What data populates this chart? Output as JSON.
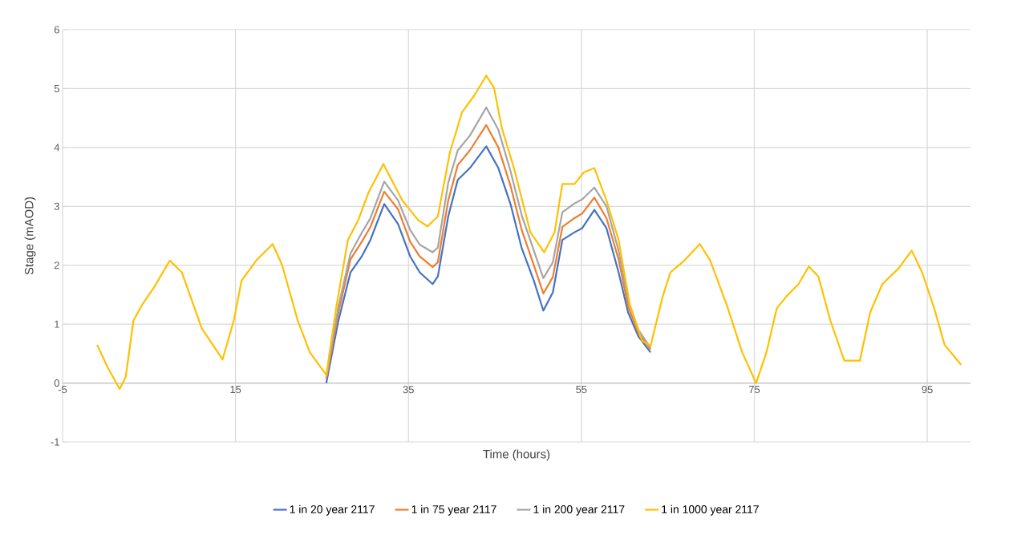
{
  "chart_data": {
    "type": "line",
    "xlabel": "Time (hours)",
    "ylabel": "Stage (mAOD)",
    "xlim": [
      -5,
      100
    ],
    "xticks": [
      -5,
      15,
      35,
      55,
      75,
      95
    ],
    "ylim": [
      -1,
      6
    ],
    "yticks": [
      -1,
      0,
      1,
      2,
      3,
      4,
      5,
      6
    ],
    "grid": true,
    "legend": "bottom",
    "marker": "none",
    "line_style": "solid",
    "series": [
      {
        "name": "1 in 20 year 2117",
        "color": "#4472c4",
        "x": [
          25.5,
          26.9,
          28.3,
          29.6,
          30.6,
          32.2,
          33.8,
          35.2,
          36.3,
          37.8,
          38.4,
          39.6,
          40.7,
          42.1,
          44.0,
          45.4,
          46.8,
          48.1,
          49.5,
          50.6,
          51.7,
          52.8,
          54.2,
          55.1,
          56.5,
          57.9,
          59.3,
          60.4,
          61.6,
          63.0
        ],
        "values": [
          0.0,
          1.06,
          1.88,
          2.15,
          2.43,
          3.04,
          2.7,
          2.15,
          1.88,
          1.68,
          1.81,
          2.83,
          3.45,
          3.65,
          4.02,
          3.65,
          3.04,
          2.29,
          1.74,
          1.23,
          1.54,
          2.43,
          2.56,
          2.63,
          2.94,
          2.63,
          1.88,
          1.2,
          0.79,
          0.52
        ]
      },
      {
        "name": "1 in 75 year 2117",
        "color": "#ed7d31",
        "x": [
          25.5,
          26.9,
          28.3,
          29.6,
          30.6,
          32.2,
          33.8,
          35.2,
          36.3,
          37.8,
          38.4,
          39.6,
          40.7,
          42.1,
          44.0,
          45.4,
          46.8,
          48.1,
          49.5,
          50.6,
          51.7,
          52.8,
          54.2,
          55.1,
          56.5,
          57.9,
          59.3,
          60.4,
          61.6,
          63.0
        ],
        "values": [
          0.07,
          1.2,
          2.1,
          2.4,
          2.65,
          3.25,
          2.95,
          2.4,
          2.15,
          1.97,
          2.05,
          3.1,
          3.7,
          3.95,
          4.38,
          4.0,
          3.35,
          2.6,
          2.0,
          1.52,
          1.8,
          2.65,
          2.8,
          2.88,
          3.15,
          2.8,
          2.1,
          1.3,
          0.85,
          0.57
        ]
      },
      {
        "name": "1 in 200 year 2117",
        "color": "#a5a5a5",
        "x": [
          25.5,
          26.9,
          28.3,
          29.6,
          30.6,
          32.2,
          33.8,
          35.2,
          36.3,
          37.8,
          38.4,
          39.6,
          40.7,
          42.1,
          44.0,
          45.4,
          46.8,
          48.1,
          49.5,
          50.6,
          51.7,
          52.8,
          54.2,
          55.1,
          56.5,
          57.9,
          59.3,
          60.4,
          61.6,
          63.0
        ],
        "values": [
          0.1,
          1.3,
          2.2,
          2.55,
          2.8,
          3.42,
          3.1,
          2.6,
          2.35,
          2.22,
          2.3,
          3.4,
          3.95,
          4.2,
          4.68,
          4.3,
          3.6,
          2.85,
          2.25,
          1.78,
          2.05,
          2.9,
          3.05,
          3.12,
          3.32,
          3.0,
          2.25,
          1.4,
          0.9,
          0.6
        ]
      },
      {
        "name": "1 in 1000 year 2117",
        "color": "#ffc000",
        "x": [
          -1.0,
          0.2,
          1.6,
          2.3,
          3.2,
          4.2,
          5.6,
          7.4,
          8.8,
          11.1,
          13.5,
          14.8,
          15.7,
          17.4,
          19.3,
          20.4,
          22.2,
          23.6,
          25.5,
          26.7,
          28.0,
          29.2,
          30.4,
          32.1,
          34.3,
          36.1,
          37.2,
          38.4,
          39.8,
          41.2,
          42.6,
          44.0,
          44.9,
          45.8,
          47.2,
          49.1,
          50.7,
          51.9,
          52.8,
          54.2,
          55.3,
          56.5,
          57.9,
          59.3,
          60.6,
          62.0,
          63.0,
          64.4,
          65.3,
          66.9,
          68.7,
          69.9,
          71.8,
          73.6,
          75.2,
          76.4,
          77.6,
          78.7,
          80.1,
          81.3,
          82.4,
          83.8,
          85.4,
          87.2,
          88.4,
          89.8,
          91.7,
          93.2,
          94.4,
          95.8,
          97.0,
          98.9
        ],
        "values": [
          0.65,
          0.27,
          -0.1,
          0.1,
          1.06,
          1.33,
          1.63,
          2.08,
          1.88,
          0.93,
          0.4,
          1.06,
          1.74,
          2.08,
          2.36,
          2.0,
          1.06,
          0.52,
          0.14,
          1.33,
          2.43,
          2.77,
          3.24,
          3.72,
          3.1,
          2.77,
          2.66,
          2.83,
          3.92,
          4.6,
          4.88,
          5.22,
          5.01,
          4.33,
          3.65,
          2.56,
          2.22,
          2.56,
          3.38,
          3.38,
          3.58,
          3.65,
          3.1,
          2.43,
          1.33,
          0.72,
          0.63,
          1.47,
          1.88,
          2.08,
          2.36,
          2.08,
          1.33,
          0.52,
          0.0,
          0.52,
          1.27,
          1.47,
          1.68,
          1.98,
          1.81,
          1.06,
          0.38,
          0.38,
          1.2,
          1.68,
          1.95,
          2.25,
          1.88,
          1.27,
          0.65,
          0.31
        ]
      }
    ]
  }
}
